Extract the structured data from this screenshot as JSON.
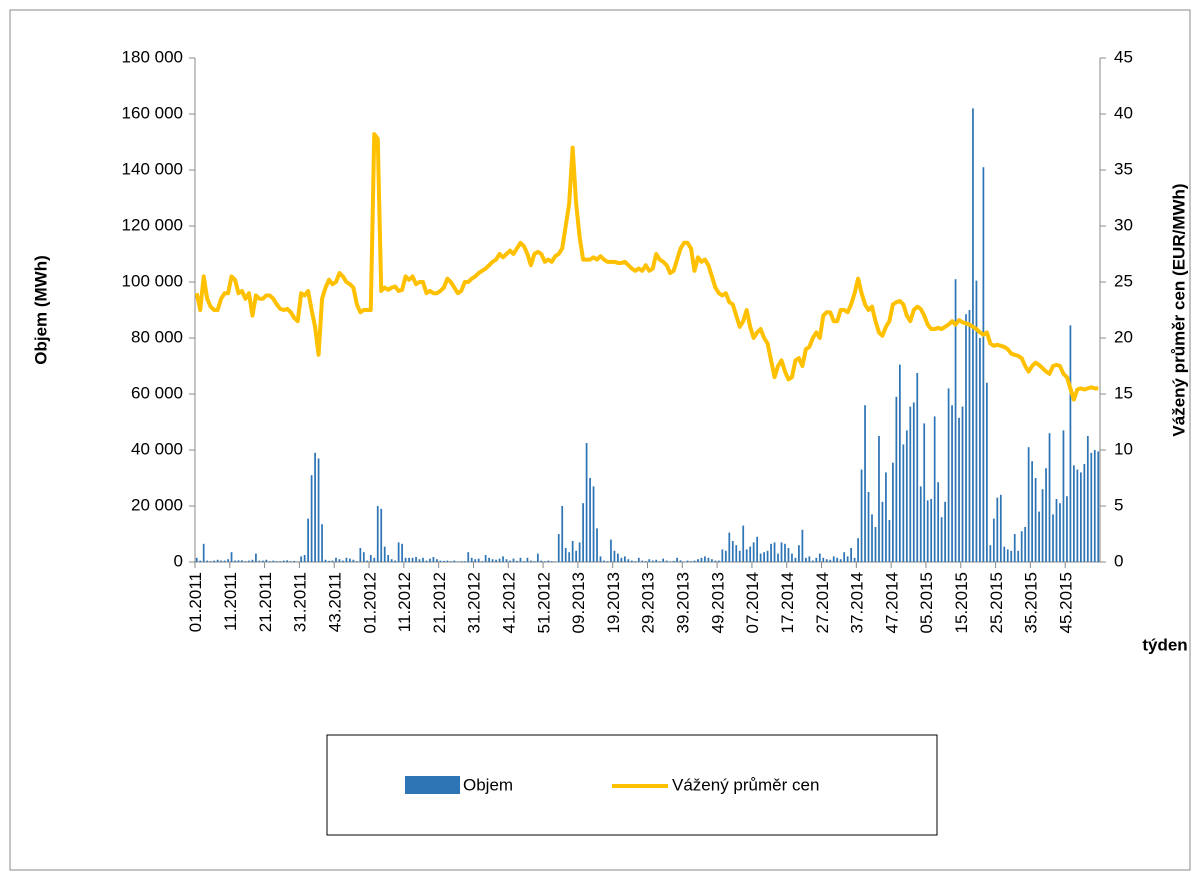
{
  "chart_data": {
    "type": "bar-line",
    "y_label": "Objem (MWh)",
    "y2_label": "Vážený průměr cen (EUR/MWh)",
    "x_label": "týden",
    "categories": [
      "01.2011",
      null,
      null,
      null,
      null,
      null,
      null,
      null,
      null,
      null,
      "11.2011",
      null,
      null,
      null,
      null,
      null,
      null,
      null,
      null,
      null,
      "21.2011",
      null,
      null,
      null,
      null,
      null,
      null,
      null,
      null,
      null,
      "31.2011",
      null,
      null,
      null,
      null,
      null,
      null,
      null,
      null,
      null,
      "43.2011",
      null,
      null,
      null,
      null,
      null,
      null,
      null,
      null,
      null,
      "01.2012",
      null,
      null,
      null,
      null,
      null,
      null,
      null,
      null,
      null,
      "11.2012",
      null,
      null,
      null,
      null,
      null,
      null,
      null,
      null,
      null,
      "21.2012",
      null,
      null,
      null,
      null,
      null,
      null,
      null,
      null,
      null,
      "31.2012",
      null,
      null,
      null,
      null,
      null,
      null,
      null,
      null,
      null,
      "41.2012",
      null,
      null,
      null,
      null,
      null,
      null,
      null,
      null,
      null,
      "51.2012",
      null,
      null,
      null,
      null,
      null,
      null,
      null,
      null,
      null,
      "09.2013",
      null,
      null,
      null,
      null,
      null,
      null,
      null,
      null,
      null,
      "19.2013",
      null,
      null,
      null,
      null,
      null,
      null,
      null,
      null,
      null,
      "29.2013",
      null,
      null,
      null,
      null,
      null,
      null,
      null,
      null,
      null,
      "39.2013",
      null,
      null,
      null,
      null,
      null,
      null,
      null,
      null,
      null,
      "49.2013",
      null,
      null,
      null,
      null,
      null,
      null,
      null,
      null,
      null,
      "07.2014",
      null,
      null,
      null,
      null,
      null,
      null,
      null,
      null,
      null,
      "17.2014",
      null,
      null,
      null,
      null,
      null,
      null,
      null,
      null,
      null,
      "27.2014",
      null,
      null,
      null,
      null,
      null,
      null,
      null,
      null,
      null,
      "37.2014",
      null,
      null,
      null,
      null,
      null,
      null,
      null,
      null,
      null,
      "47.2014",
      null,
      null,
      null,
      null,
      null,
      null,
      null,
      null,
      null,
      "05.2015",
      null,
      null,
      null,
      null,
      null,
      null,
      null,
      null,
      null,
      "15.2015",
      null,
      null,
      null,
      null,
      null,
      null,
      null,
      null,
      null,
      "25.2015",
      null,
      null,
      null,
      null,
      null,
      null,
      null,
      null,
      null,
      "35.2015",
      null,
      null,
      null,
      null,
      null,
      null,
      null,
      null,
      null,
      "45.2015",
      null,
      null,
      null,
      null,
      null,
      null,
      null,
      null,
      null
    ],
    "series": [
      {
        "name": "Objem",
        "type": "bar",
        "color": "#2e75b6",
        "values": [
          1500,
          500,
          6500,
          500,
          300,
          500,
          800,
          500,
          500,
          1000,
          3500,
          500,
          600,
          600,
          300,
          500,
          800,
          3000,
          500,
          500,
          800,
          300,
          500,
          300,
          300,
          500,
          600,
          300,
          400,
          200,
          2000,
          2500,
          15500,
          31000,
          39000,
          37000,
          13500,
          800,
          400,
          500,
          1500,
          1000,
          500,
          1500,
          1200,
          800,
          300,
          5000,
          3500,
          500,
          2500,
          1500,
          20000,
          19000,
          5500,
          2500,
          1000,
          500,
          7000,
          6500,
          1500,
          1500,
          1500,
          1800,
          1000,
          1500,
          500,
          1200,
          1800,
          1000,
          500,
          400,
          500,
          300,
          500,
          200,
          300,
          300,
          3500,
          1500,
          1000,
          1200,
          300,
          2500,
          1500,
          1000,
          800,
          1200,
          2000,
          1000,
          500,
          1200,
          400,
          1500,
          300,
          1500,
          500,
          300,
          3000,
          500,
          300,
          500,
          300,
          200,
          10000,
          20000,
          5000,
          3500,
          7500,
          4000,
          7000,
          21000,
          42500,
          30000,
          27000,
          12000,
          2000,
          500,
          300,
          8000,
          4000,
          3000,
          1500,
          2000,
          1000,
          500,
          300,
          1500,
          500,
          300,
          1000,
          500,
          800,
          300,
          1200,
          500,
          200,
          400,
          1500,
          600,
          200,
          500,
          300,
          500,
          1000,
          1500,
          2000,
          1500,
          1000,
          500,
          500,
          4500,
          4000,
          10500,
          7500,
          6000,
          4000,
          13000,
          4500,
          5500,
          7000,
          9000,
          3000,
          3500,
          4000,
          6500,
          7000,
          3000,
          7000,
          6500,
          5000,
          3000,
          1500,
          6000,
          11500,
          1500,
          2000,
          500,
          1500,
          3000,
          1500,
          1000,
          800,
          2000,
          1500,
          1000,
          3500,
          2000,
          5000,
          1500,
          8500,
          33000,
          56000,
          25000,
          17000,
          12500,
          45000,
          21500,
          32000,
          15000,
          35500,
          59000,
          70500,
          42000,
          47000,
          55500,
          57000,
          67500,
          27000,
          49500,
          22000,
          22500,
          52000,
          28500,
          16000,
          21500,
          62000,
          56000,
          101000,
          51500,
          55500,
          88500,
          90000,
          162000,
          100500,
          80000,
          141000,
          64000,
          6000,
          15500,
          23000,
          24000,
          5500,
          4500,
          4000,
          10000,
          4000,
          11000,
          12500,
          41000,
          36000,
          30000,
          18000,
          26000,
          33500,
          46000,
          17000,
          22500,
          21000,
          47000,
          23500,
          84500,
          34500,
          33000,
          32000,
          35000,
          45000,
          39000,
          40000,
          39500
        ]
      },
      {
        "name": "Vážený průměr cen",
        "type": "line",
        "axis": "y2",
        "color": "#ffc000",
        "values": [
          24,
          22.5,
          25.5,
          23.5,
          22.8,
          22.5,
          22.5,
          23.5,
          24,
          24,
          25.5,
          25.2,
          24,
          24.2,
          23.5,
          24,
          22,
          23.8,
          23.5,
          23.5,
          23.8,
          23.8,
          23.5,
          23,
          22.6,
          22.5,
          22.6,
          22.3,
          21.8,
          21.5,
          24,
          23.8,
          24.2,
          22.5,
          21,
          18.5,
          23.5,
          24.5,
          25.2,
          24.8,
          25,
          25.8,
          25.5,
          25,
          24.8,
          24.5,
          23,
          22.3,
          22.5,
          22.5,
          22.5,
          38.2,
          37.8,
          24.2,
          24.5,
          24.3,
          24.5,
          24.6,
          24.2,
          24.3,
          25.5,
          25.2,
          25.5,
          24.8,
          25,
          25,
          24,
          24.2,
          24,
          24,
          24.2,
          24.5,
          25.3,
          25,
          24.5,
          24,
          24.2,
          25,
          25,
          25.3,
          25.5,
          25.8,
          26,
          26.2,
          26.5,
          26.8,
          27,
          27.5,
          27.2,
          27.5,
          27.8,
          27.5,
          28,
          28.5,
          28.2,
          27.5,
          26.5,
          27.5,
          27.7,
          27.5,
          26.8,
          27,
          26.8,
          27.3,
          27.5,
          28,
          30,
          32,
          37,
          32,
          29,
          27,
          27,
          27,
          27.2,
          27,
          27.3,
          27,
          26.8,
          26.8,
          26.8,
          26.7,
          26.7,
          26.8,
          26.5,
          26.2,
          26,
          26.2,
          26,
          26.5,
          26,
          26.2,
          27.5,
          27,
          26.8,
          26.5,
          25.8,
          26,
          27,
          28,
          28.5,
          28.5,
          28,
          26,
          27.2,
          26.8,
          27,
          26.5,
          25.5,
          24.5,
          24,
          23.8,
          24,
          23.2,
          23,
          22,
          21,
          21.5,
          22.5,
          21,
          20,
          20.5,
          20.8,
          20,
          19.5,
          18,
          16.5,
          17.5,
          18,
          17,
          16.3,
          16.5,
          18,
          18.2,
          17.5,
          19,
          19.2,
          20,
          20.5,
          20,
          22,
          22.3,
          22.3,
          21.5,
          21.5,
          22.5,
          22.5,
          22.3,
          23,
          24,
          25.3,
          24,
          23,
          22.5,
          22.8,
          21.5,
          20.5,
          20.2,
          21,
          21.5,
          23,
          23.2,
          23.3,
          23,
          22,
          21.5,
          22.5,
          22.8,
          22.6,
          22,
          21.2,
          20.8,
          20.8,
          20.9,
          20.8,
          21,
          21.2,
          21.5,
          21.2,
          21.6,
          21.4,
          21.3,
          21.2,
          21,
          20.8,
          20.5,
          20.3,
          20.5,
          19.5,
          19.3,
          19.4,
          19.3,
          19.2,
          19,
          18.6,
          18.5,
          18.4,
          18.2,
          17.5,
          17,
          17.5,
          17.8,
          17.6,
          17.3,
          17,
          16.8,
          17.5,
          17.6,
          17.5,
          16.8,
          16.5,
          15.5,
          14.5,
          15.4,
          15.5,
          15.4,
          15.5,
          15.6,
          15.5,
          15.5
        ]
      }
    ],
    "ylim": [
      0,
      180000
    ],
    "yticks": [
      0,
      {
        "value": 20000,
        "label": "20 000"
      },
      {
        "value": 40000,
        "label": "40 000"
      },
      {
        "value": 60000,
        "label": "60 000"
      },
      {
        "value": 80000,
        "label": "80 000"
      },
      {
        "value": 100000,
        "label": "100 000"
      },
      {
        "value": 120000,
        "label": "120 000"
      },
      {
        "value": 140000,
        "label": "140 000"
      },
      {
        "value": 160000,
        "label": "160 000"
      },
      {
        "value": 180000,
        "label": "180 000"
      }
    ],
    "y2lim": [
      0,
      45
    ],
    "y2ticks": [
      0,
      5,
      10,
      15,
      20,
      25,
      30,
      35,
      40,
      45
    ],
    "legend": "bottom"
  }
}
